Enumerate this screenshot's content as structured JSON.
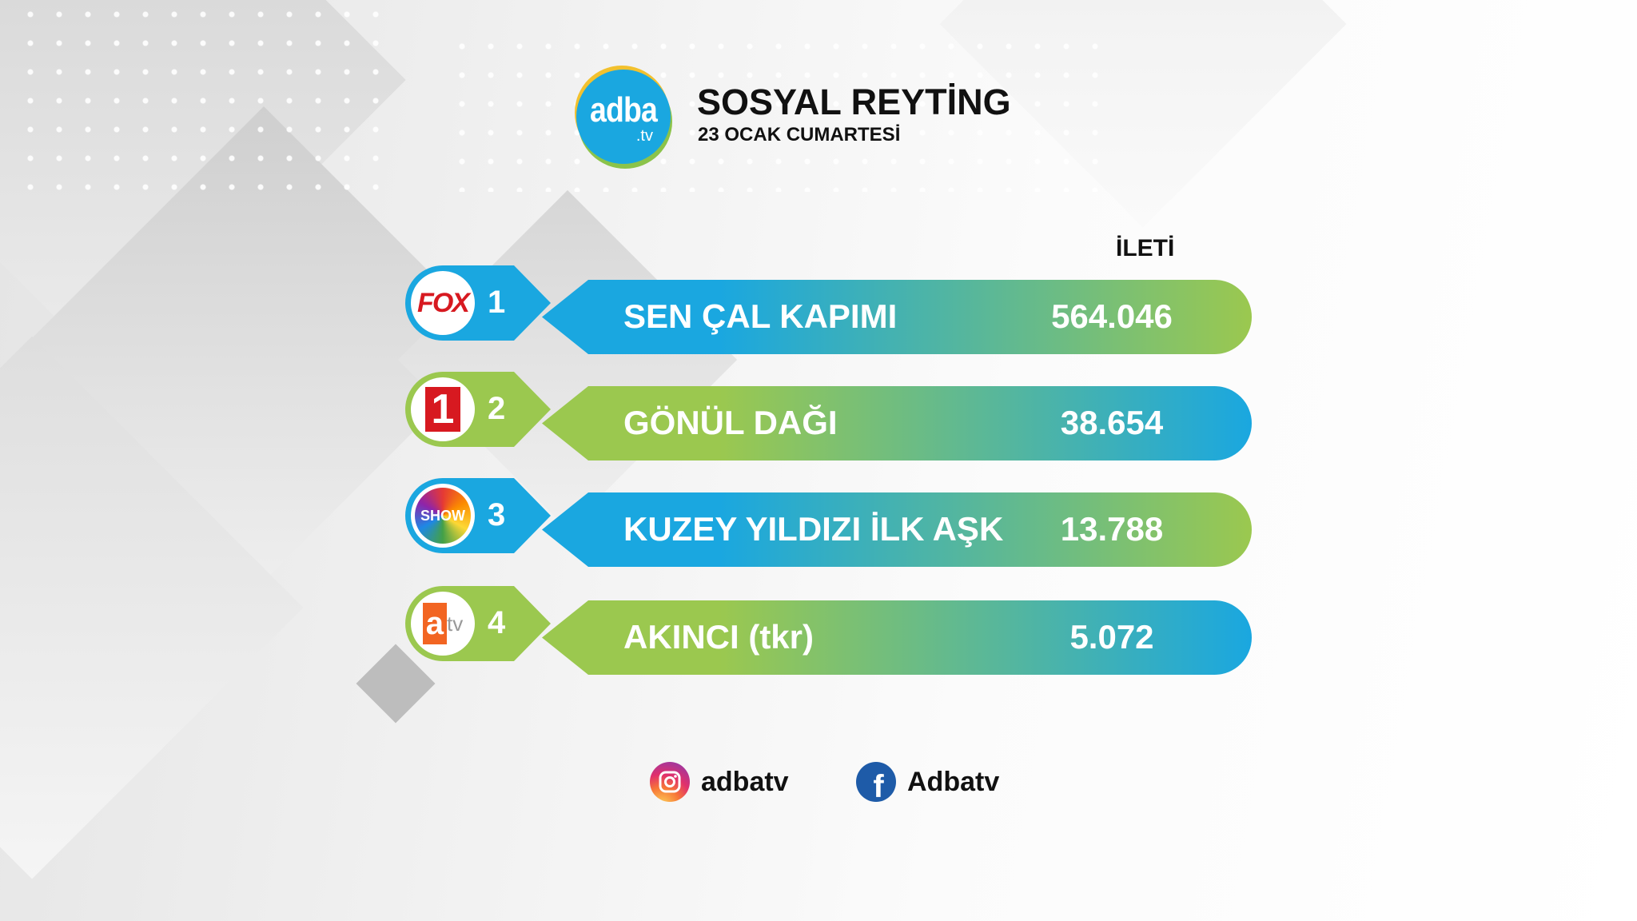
{
  "header": {
    "logo_text": "adba",
    "logo_suffix": ".tv",
    "title": "SOSYAL REYTİNG",
    "subtitle": "23 OCAK CUMARTESİ"
  },
  "column_header": "İLETİ",
  "colors": {
    "blue": "#1aa7e0",
    "green": "#9bc84f"
  },
  "rows": [
    {
      "rank": "1",
      "channel": "FOX",
      "channel_logo": "fox-logo",
      "name": "SEN ÇAL KAPIMI",
      "value": "564.046",
      "start_color": "#1aa7e0",
      "end_color": "#9bc84f"
    },
    {
      "rank": "2",
      "channel": "Kanal 1",
      "channel_logo": "star-tv-1-logo",
      "name": "GÖNÜL DAĞI",
      "value": "38.654",
      "start_color": "#9bc84f",
      "end_color": "#1aa7e0"
    },
    {
      "rank": "3",
      "channel": "SHOW",
      "channel_logo": "show-tv-logo",
      "name": "KUZEY YILDIZI İLK AŞK",
      "value": "13.788",
      "start_color": "#1aa7e0",
      "end_color": "#9bc84f"
    },
    {
      "rank": "4",
      "channel": "atv",
      "channel_logo": "atv-logo",
      "name": "AKINCI (tkr)",
      "value": "5.072",
      "start_color": "#9bc84f",
      "end_color": "#1aa7e0"
    }
  ],
  "footer": {
    "instagram": "adbatv",
    "facebook": "Adbatv"
  }
}
